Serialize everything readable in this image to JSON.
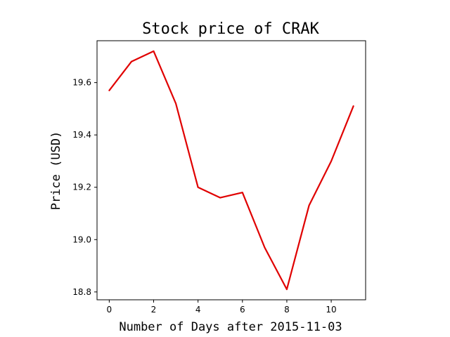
{
  "chart_data": {
    "type": "line",
    "title": "Stock price of CRAK",
    "xlabel": "Number of Days after 2015-11-03",
    "ylabel": "Price (USD)",
    "xlim": [
      -0.55,
      11.55
    ],
    "ylim": [
      18.77,
      19.76
    ],
    "xticks": [
      0,
      2,
      4,
      6,
      8,
      10
    ],
    "xtick_labels": [
      "0",
      "2",
      "4",
      "6",
      "8",
      "10"
    ],
    "yticks": [
      18.8,
      19.0,
      19.2,
      19.4,
      19.6
    ],
    "ytick_labels": [
      "18.8",
      "19.0",
      "19.2",
      "19.4",
      "19.6"
    ],
    "grid": false,
    "series": [
      {
        "color": "#e00000",
        "x": [
          0,
          1,
          2,
          3,
          4,
          5,
          6,
          7,
          8,
          9,
          10,
          11
        ],
        "y": [
          19.57,
          19.68,
          19.72,
          19.52,
          19.2,
          19.16,
          19.18,
          18.97,
          18.81,
          19.13,
          19.3,
          19.51
        ]
      }
    ]
  }
}
